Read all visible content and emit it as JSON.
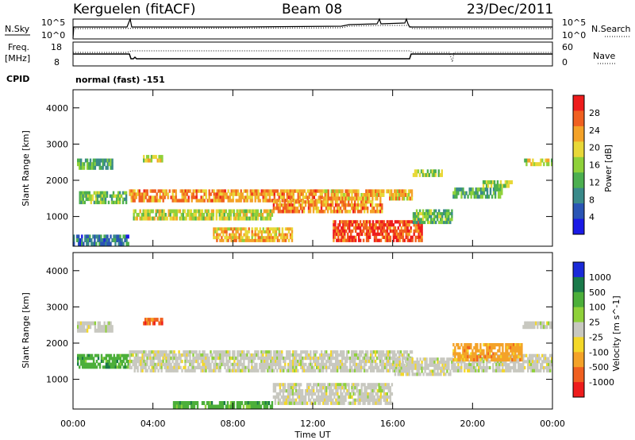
{
  "header": {
    "radar": "Kerguelen (fitACF)",
    "beam": "Beam 08",
    "date": "23/Dec/2011"
  },
  "panels": {
    "nsky_label": "N.Sky",
    "nsky_ticks": [
      "10^5",
      "10^0"
    ],
    "nsearch_label": "N.Search",
    "nsearch_ticks": [
      "10^5",
      "10^0"
    ],
    "freq_label_1": "Freq.",
    "freq_label_2": "[MHz]",
    "freq_ticks": [
      "18",
      "8"
    ],
    "nave_label": "Nave",
    "nave_ticks": [
      "60",
      "0"
    ],
    "cpid_label": "CPID",
    "cpid_value": "normal (fast) -151"
  },
  "chart_data": [
    {
      "type": "heatmap",
      "name": "power",
      "ylabel": "Slant Range [km]",
      "y_ticks": [
        "4000",
        "3000",
        "2000",
        "1000"
      ],
      "ylim": [
        180,
        4500
      ],
      "colorbar_label": "Power [dB]",
      "colorbar_ticks": [
        "28",
        "24",
        "20",
        "16",
        "12",
        "8",
        "4"
      ],
      "colorbar_range": [
        0,
        32
      ],
      "colors": [
        "#1a1ae6",
        "#2a55b5",
        "#3a8a8a",
        "#4caf50",
        "#8fd13a",
        "#e8d838",
        "#f4a228",
        "#f06020",
        "#ee1c1c"
      ],
      "regions": [
        {
          "t": [
            0.3,
            2.7
          ],
          "r": [
            1350,
            1700
          ],
          "p": 14
        },
        {
          "t": [
            0.0,
            2.8
          ],
          "r": [
            200,
            500
          ],
          "p": 8
        },
        {
          "t": [
            2.8,
            12.5
          ],
          "r": [
            1400,
            1750
          ],
          "p": 24
        },
        {
          "t": [
            3.0,
            10.0
          ],
          "r": [
            900,
            1200
          ],
          "p": 18
        },
        {
          "t": [
            7.0,
            11.0
          ],
          "r": [
            300,
            700
          ],
          "p": 22
        },
        {
          "t": [
            10.0,
            15.5
          ],
          "r": [
            1100,
            1450
          ],
          "p": 24
        },
        {
          "t": [
            12.5,
            17.0
          ],
          "r": [
            1450,
            1750
          ],
          "p": 22
        },
        {
          "t": [
            13.0,
            17.5
          ],
          "r": [
            300,
            900
          ],
          "p": 28
        },
        {
          "t": [
            17.0,
            19.0
          ],
          "r": [
            800,
            1200
          ],
          "p": 14
        },
        {
          "t": [
            19.0,
            21.5
          ],
          "r": [
            1500,
            1800
          ],
          "p": 12
        },
        {
          "t": [
            22.5,
            24.0
          ],
          "r": [
            2400,
            2600
          ],
          "p": 18
        },
        {
          "t": [
            0.2,
            2.0
          ],
          "r": [
            2300,
            2600
          ],
          "p": 12
        },
        {
          "t": [
            3.5,
            4.5
          ],
          "r": [
            2500,
            2700
          ],
          "p": 18
        },
        {
          "t": [
            17.0,
            18.5
          ],
          "r": [
            2100,
            2300
          ],
          "p": 16
        },
        {
          "t": [
            20.5,
            22.0
          ],
          "r": [
            1800,
            2000
          ],
          "p": 16
        }
      ]
    },
    {
      "type": "heatmap",
      "name": "velocity",
      "ylabel": "Slant Range [km]",
      "y_ticks": [
        "4000",
        "3000",
        "2000",
        "1000"
      ],
      "ylim": [
        180,
        4500
      ],
      "x_ticks": [
        "00:00",
        "04:00",
        "08:00",
        "12:00",
        "16:00",
        "20:00",
        "00:00"
      ],
      "xlabel": "Time UT",
      "xlim": [
        0,
        24
      ],
      "colorbar_label": "Velocity [m s^-1]",
      "colorbar_ticks": [
        "1000",
        "500",
        "100",
        "25",
        "-25",
        "-100",
        "-500",
        "-1000"
      ],
      "colors": [
        "#1a2ad8",
        "#1a7a4a",
        "#4caf3a",
        "#8fd13a",
        "#c8c8c0",
        "#f4d828",
        "#f4a228",
        "#f06020",
        "#ee1c1c"
      ],
      "regions": [
        {
          "t": [
            0.2,
            2.8
          ],
          "r": [
            1300,
            1700
          ],
          "c": 2
        },
        {
          "t": [
            2.8,
            17.0
          ],
          "r": [
            1200,
            1800
          ],
          "c": 4
        },
        {
          "t": [
            10.0,
            16.0
          ],
          "r": [
            300,
            900
          ],
          "c": 4
        },
        {
          "t": [
            16.0,
            19.0
          ],
          "r": [
            1100,
            1600
          ],
          "c": 4
        },
        {
          "t": [
            19.0,
            24.0
          ],
          "r": [
            1200,
            1700
          ],
          "c": 4
        },
        {
          "t": [
            5.0,
            10.0
          ],
          "r": [
            200,
            400
          ],
          "c": 2
        },
        {
          "t": [
            19.0,
            22.5
          ],
          "r": [
            1500,
            2000
          ],
          "c": 6
        },
        {
          "t": [
            22.5,
            24.0
          ],
          "r": [
            2400,
            2600
          ],
          "c": 4
        },
        {
          "t": [
            0.2,
            2.0
          ],
          "r": [
            2300,
            2600
          ],
          "c": 4
        },
        {
          "t": [
            3.5,
            4.5
          ],
          "r": [
            2500,
            2700
          ],
          "c": 7
        }
      ]
    }
  ]
}
